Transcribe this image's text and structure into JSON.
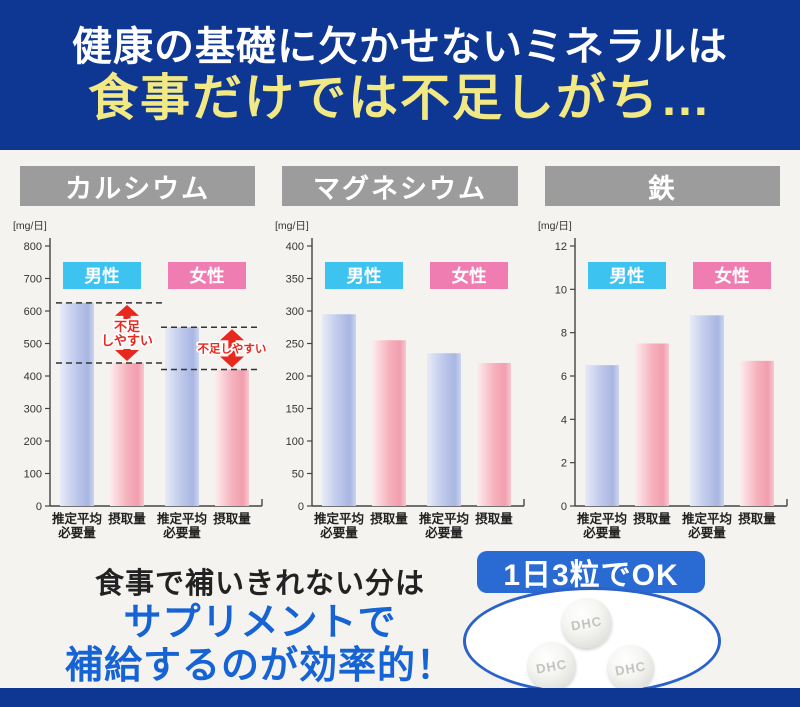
{
  "header": {
    "line1": "健康の基礎に欠かせないミネラルは",
    "line2": "食事だけでは不足しがち…"
  },
  "colors": {
    "page_bg": "#f4f3ef",
    "header_bg": "#0d3793",
    "header_line1": "#ffffff",
    "header_line2": "#f2e985",
    "title_box_bg": "#9c9c9c",
    "male_badge": "#3cc3f0",
    "female_badge": "#f07db2",
    "bar_blue": [
      "#e7ebf7",
      "#bcc7ea",
      "#a8b6e2",
      "#ccd5f0"
    ],
    "bar_pink": [
      "#fdedef",
      "#f6b2bd",
      "#f19eae",
      "#f9c8d0"
    ],
    "axis": "#444444",
    "tick_text": "#333333",
    "category_text": "#222222",
    "deficiency_red": "#e8281e",
    "dash_line": "#333333",
    "footer_line1_color": "#222222",
    "footer_blue": "#1563d4",
    "badge_bg": "#2a6ad3",
    "ellipse_border": "#2a62c8",
    "bottom_bar": "#0d3793"
  },
  "chart_data": [
    {
      "type": "bar",
      "title": "カルシウム",
      "unit_label": "[mg/日]",
      "ylim": [
        0,
        800
      ],
      "ytick_step": 100,
      "grid": false,
      "legend_position": "above-bars",
      "categories": [
        "推定平均必要量",
        "摂取量",
        "推定平均必要量",
        "摂取量"
      ],
      "bar_label_lines": {
        "requirement": [
          "推定平均",
          "必要量"
        ],
        "intake": [
          "摂取量"
        ]
      },
      "series": [
        {
          "name": "男性",
          "requirement": 625,
          "intake": 440
        },
        {
          "name": "女性",
          "requirement": 550,
          "intake": 420
        }
      ],
      "annotations": [
        {
          "series": "男性",
          "from": 625,
          "to": 440,
          "label_lines": [
            "不足",
            "しやすい"
          ]
        },
        {
          "series": "女性",
          "from": 550,
          "to": 420,
          "label_lines": [
            "不足しやすい"
          ]
        }
      ]
    },
    {
      "type": "bar",
      "title": "マグネシウム",
      "unit_label": "[mg/日]",
      "ylim": [
        0,
        400
      ],
      "ytick_step": 50,
      "grid": false,
      "legend_position": "above-bars",
      "categories": [
        "推定平均必要量",
        "摂取量",
        "推定平均必要量",
        "摂取量"
      ],
      "bar_label_lines": {
        "requirement": [
          "推定平均",
          "必要量"
        ],
        "intake": [
          "摂取量"
        ]
      },
      "series": [
        {
          "name": "男性",
          "requirement": 295,
          "intake": 255
        },
        {
          "name": "女性",
          "requirement": 235,
          "intake": 220
        }
      ],
      "annotations": []
    },
    {
      "type": "bar",
      "title": "鉄",
      "unit_label": "[mg/日]",
      "ylim": [
        0,
        12
      ],
      "ytick_step": 2,
      "grid": false,
      "legend_position": "above-bars",
      "categories": [
        "推定平均必要量",
        "摂取量",
        "推定平均必要量",
        "摂取量"
      ],
      "bar_label_lines": {
        "requirement": [
          "推定平均",
          "必要量"
        ],
        "intake": [
          "摂取量"
        ]
      },
      "series": [
        {
          "name": "男性",
          "requirement": 6.5,
          "intake": 7.5
        },
        {
          "name": "女性",
          "requirement": 8.8,
          "intake": 6.7
        }
      ],
      "annotations": []
    }
  ],
  "footer": {
    "line1": "食事で補いきれない分は",
    "line2": "サプリメントで",
    "line3": "補給するのが効率的！",
    "badge": "1日3粒でOK",
    "tablet_label": "DHC"
  }
}
